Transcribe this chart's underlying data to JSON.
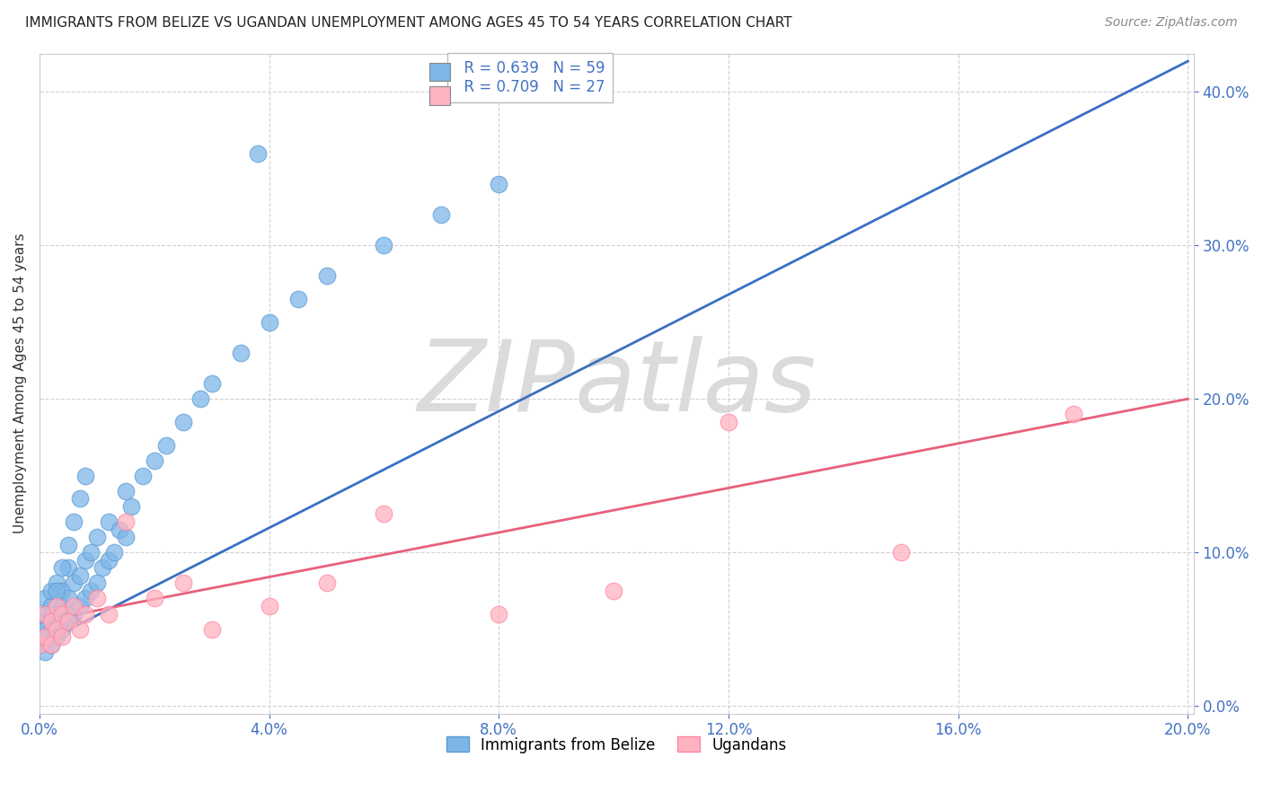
{
  "title": "IMMIGRANTS FROM BELIZE VS UGANDAN UNEMPLOYMENT AMONG AGES 45 TO 54 YEARS CORRELATION CHART",
  "source": "Source: ZipAtlas.com",
  "ylabel": "Unemployment Among Ages 45 to 54 years",
  "legend_r1": "R = 0.639",
  "legend_n1": "N = 59",
  "legend_r2": "R = 0.709",
  "legend_n2": "N = 27",
  "series1_color": "#7EB6E8",
  "series1_edge": "#5B9BD5",
  "series2_color": "#FFB3C1",
  "series2_edge": "#FF85A1",
  "trendline1_color": "#3A6FC4",
  "trendline2_color": "#E8607A",
  "watermark": "ZIPatlas",
  "background_color": "#FFFFFF",
  "xlim_lo": 0.0,
  "xlim_hi": 0.201,
  "ylim_lo": -0.005,
  "ylim_hi": 0.425,
  "xtick_vals": [
    0.0,
    0.04,
    0.08,
    0.12,
    0.16,
    0.2
  ],
  "ytick_vals": [
    0.0,
    0.1,
    0.2,
    0.3,
    0.4
  ],
  "series1_x": [
    0.0,
    0.0,
    0.001,
    0.001,
    0.001,
    0.001,
    0.002,
    0.002,
    0.002,
    0.002,
    0.003,
    0.003,
    0.003,
    0.004,
    0.004,
    0.004,
    0.005,
    0.005,
    0.005,
    0.006,
    0.006,
    0.007,
    0.007,
    0.008,
    0.008,
    0.009,
    0.009,
    0.01,
    0.01,
    0.011,
    0.012,
    0.012,
    0.013,
    0.014,
    0.015,
    0.015,
    0.016,
    0.018,
    0.02,
    0.022,
    0.025,
    0.028,
    0.03,
    0.035,
    0.04,
    0.045,
    0.05,
    0.06,
    0.07,
    0.08,
    0.001,
    0.002,
    0.003,
    0.004,
    0.005,
    0.006,
    0.007,
    0.008,
    0.038
  ],
  "series1_y": [
    0.04,
    0.055,
    0.035,
    0.05,
    0.06,
    0.07,
    0.04,
    0.055,
    0.065,
    0.075,
    0.045,
    0.06,
    0.08,
    0.05,
    0.065,
    0.075,
    0.055,
    0.07,
    0.09,
    0.06,
    0.08,
    0.065,
    0.085,
    0.07,
    0.095,
    0.075,
    0.1,
    0.08,
    0.11,
    0.09,
    0.095,
    0.12,
    0.1,
    0.115,
    0.11,
    0.14,
    0.13,
    0.15,
    0.16,
    0.17,
    0.185,
    0.2,
    0.21,
    0.23,
    0.25,
    0.265,
    0.28,
    0.3,
    0.32,
    0.34,
    0.045,
    0.06,
    0.075,
    0.09,
    0.105,
    0.12,
    0.135,
    0.15,
    0.36
  ],
  "series2_x": [
    0.0,
    0.001,
    0.001,
    0.002,
    0.002,
    0.003,
    0.003,
    0.004,
    0.004,
    0.005,
    0.006,
    0.007,
    0.008,
    0.01,
    0.012,
    0.015,
    0.02,
    0.025,
    0.03,
    0.04,
    0.05,
    0.06,
    0.08,
    0.1,
    0.12,
    0.15,
    0.18
  ],
  "series2_y": [
    0.04,
    0.045,
    0.06,
    0.04,
    0.055,
    0.05,
    0.065,
    0.045,
    0.06,
    0.055,
    0.065,
    0.05,
    0.06,
    0.07,
    0.06,
    0.12,
    0.07,
    0.08,
    0.05,
    0.065,
    0.08,
    0.125,
    0.06,
    0.075,
    0.185,
    0.1,
    0.19
  ],
  "trendline1_x0": 0.0,
  "trendline1_y0": 0.04,
  "trendline1_x1": 0.2,
  "trendline1_y1": 0.42,
  "trendline2_x0": 0.0,
  "trendline2_y0": 0.055,
  "trendline2_x1": 0.2,
  "trendline2_y1": 0.2
}
